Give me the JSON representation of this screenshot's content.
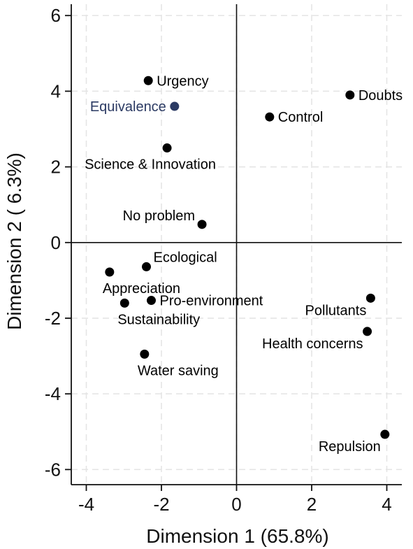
{
  "chart_data": {
    "type": "scatter",
    "title": "",
    "xlabel": "Dimension 1 (65.8%)",
    "ylabel": "Dimension 2 ( 6.3%)",
    "xlim": [
      -4.4,
      4.4
    ],
    "ylim": [
      -6.4,
      6.3
    ],
    "xticks": [
      -4,
      -2,
      0,
      2,
      4
    ],
    "yticks": [
      -6,
      -4,
      -2,
      0,
      2,
      4,
      6
    ],
    "grid": true,
    "reference_lines": {
      "x": 0,
      "y": 0
    },
    "default_color": "#000000",
    "highlight_color": "#2b3a63",
    "points": [
      {
        "label": "Urgency",
        "x": -2.35,
        "y": 4.28,
        "anchor": "right"
      },
      {
        "label": "Equivalence",
        "x": -1.65,
        "y": 3.6,
        "anchor": "left",
        "highlight": true
      },
      {
        "label": "Doubts",
        "x": 3.02,
        "y": 3.9,
        "anchor": "right"
      },
      {
        "label": "Control",
        "x": 0.88,
        "y": 3.32,
        "anchor": "right"
      },
      {
        "label": "Science & Innovation",
        "x": -1.85,
        "y": 2.5,
        "anchor": "below"
      },
      {
        "label": "No problem",
        "x": -0.92,
        "y": 0.48,
        "anchor": "upper-left"
      },
      {
        "label": "Ecological",
        "x": -2.4,
        "y": -0.64,
        "anchor": "upper-right"
      },
      {
        "label": "Appreciation",
        "x": -3.38,
        "y": -0.78,
        "anchor": "lower-right"
      },
      {
        "label": "Pro-environment",
        "x": -2.27,
        "y": -1.53,
        "anchor": "right"
      },
      {
        "label": "Sustainability",
        "x": -2.98,
        "y": -1.6,
        "anchor": "lower-right"
      },
      {
        "label": "Pollutants",
        "x": 3.57,
        "y": -1.47,
        "anchor": "lower-left"
      },
      {
        "label": "Health concerns",
        "x": 3.48,
        "y": -2.35,
        "anchor": "lower-left"
      },
      {
        "label": "Water saving",
        "x": -2.45,
        "y": -2.95,
        "anchor": "lower-right"
      },
      {
        "label": "Repulsion",
        "x": 3.95,
        "y": -5.07,
        "anchor": "lower-left"
      }
    ]
  }
}
